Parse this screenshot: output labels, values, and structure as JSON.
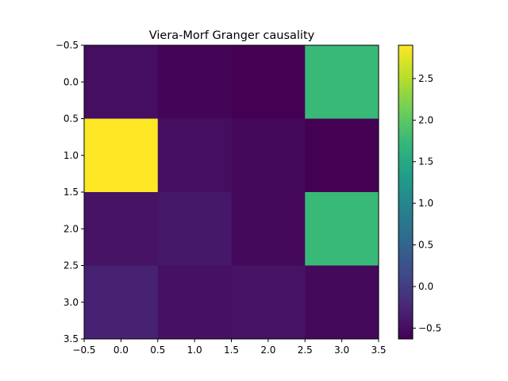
{
  "chart_data": {
    "type": "heatmap",
    "title": "Viera-Morf Granger causality",
    "xlabel": "",
    "ylabel": "",
    "x_ticks": [
      "−0.5",
      "0.0",
      "0.5",
      "1.0",
      "1.5",
      "2.0",
      "2.5",
      "3.0",
      "3.5"
    ],
    "y_ticks": [
      "−0.5",
      "0.0",
      "0.5",
      "1.0",
      "1.5",
      "2.0",
      "2.5",
      "3.0",
      "3.5"
    ],
    "x_range": [
      -0.5,
      3.5
    ],
    "y_range": [
      -0.5,
      3.5
    ],
    "y_inverted": true,
    "matrix": [
      [
        -0.5,
        -0.6,
        -0.63,
        1.75
      ],
      [
        2.9,
        -0.5,
        -0.55,
        -0.63
      ],
      [
        -0.45,
        -0.4,
        -0.55,
        1.75
      ],
      [
        -0.3,
        -0.47,
        -0.45,
        -0.55
      ]
    ],
    "colorbar": {
      "colormap": "viridis",
      "vmin": -0.63,
      "vmax": 2.9,
      "ticks": [
        -0.5,
        0.0,
        0.5,
        1.0,
        1.5,
        2.0,
        2.5
      ],
      "tick_labels": [
        "−0.5",
        "0.0",
        "0.5",
        "1.0",
        "1.5",
        "2.0",
        "2.5"
      ]
    }
  }
}
